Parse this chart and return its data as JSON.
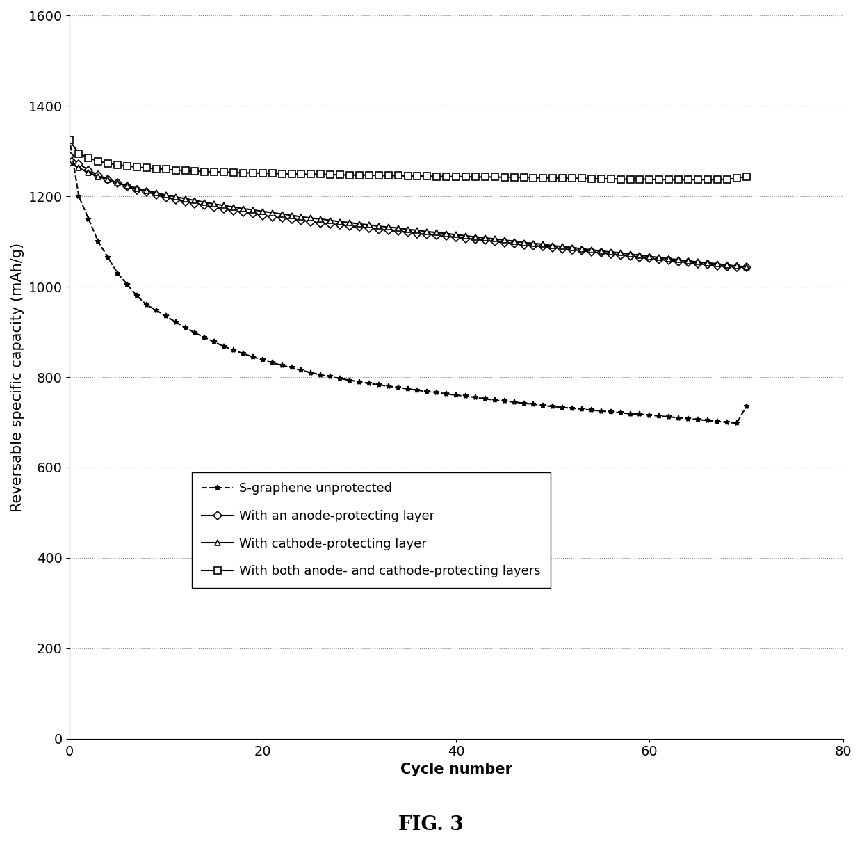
{
  "title": "FIG. 3",
  "xlabel": "Cycle number",
  "ylabel": "Reversable specific capacity (mAh/g)",
  "xlim": [
    0,
    80
  ],
  "ylim": [
    0,
    1600
  ],
  "xticks": [
    0,
    20,
    40,
    60,
    80
  ],
  "yticks": [
    0,
    200,
    400,
    600,
    800,
    1000,
    1200,
    1400,
    1600
  ],
  "background_color": "#ffffff",
  "grid_color": "#888888",
  "title_fontsize": 20,
  "axis_label_fontsize": 15,
  "tick_fontsize": 14,
  "legend_fontsize": 13,
  "series": [
    {
      "label": "S-graphene unprotected",
      "x": [
        0,
        1,
        2,
        3,
        4,
        5,
        6,
        7,
        8,
        9,
        10,
        11,
        12,
        13,
        14,
        15,
        16,
        17,
        18,
        19,
        20,
        21,
        22,
        23,
        24,
        25,
        26,
        27,
        28,
        29,
        30,
        31,
        32,
        33,
        34,
        35,
        36,
        37,
        38,
        39,
        40,
        41,
        42,
        43,
        44,
        45,
        46,
        47,
        48,
        49,
        50,
        51,
        52,
        53,
        54,
        55,
        56,
        57,
        58,
        59,
        60,
        61,
        62,
        63,
        64,
        65,
        66,
        67,
        68,
        69,
        70
      ],
      "y": [
        1330,
        1200,
        1150,
        1100,
        1065,
        1030,
        1005,
        980,
        960,
        948,
        935,
        922,
        910,
        898,
        888,
        878,
        868,
        860,
        852,
        845,
        838,
        832,
        826,
        821,
        815,
        810,
        805,
        801,
        797,
        793,
        790,
        786,
        783,
        780,
        777,
        774,
        771,
        768,
        766,
        763,
        760,
        758,
        755,
        752,
        749,
        747,
        745,
        742,
        740,
        737,
        735,
        733,
        731,
        729,
        727,
        725,
        723,
        721,
        719,
        718,
        716,
        714,
        712,
        710,
        708,
        706,
        704,
        702,
        700,
        698,
        735
      ],
      "color": "#000000",
      "linestyle": "--",
      "marker": "*",
      "markersize": 6,
      "linewidth": 1.5,
      "markerfacecolor": "#000000",
      "markeredgecolor": "#000000"
    },
    {
      "label": "With an anode-protecting layer",
      "x": [
        0,
        1,
        2,
        3,
        4,
        5,
        6,
        7,
        8,
        9,
        10,
        11,
        12,
        13,
        14,
        15,
        16,
        17,
        18,
        19,
        20,
        21,
        22,
        23,
        24,
        25,
        26,
        27,
        28,
        29,
        30,
        31,
        32,
        33,
        34,
        35,
        36,
        37,
        38,
        39,
        40,
        41,
        42,
        43,
        44,
        45,
        46,
        47,
        48,
        49,
        50,
        51,
        52,
        53,
        54,
        55,
        56,
        57,
        58,
        59,
        60,
        61,
        62,
        63,
        64,
        65,
        66,
        67,
        68,
        69,
        70
      ],
      "y": [
        1290,
        1272,
        1258,
        1247,
        1238,
        1230,
        1222,
        1215,
        1210,
        1204,
        1198,
        1193,
        1188,
        1184,
        1180,
        1176,
        1172,
        1168,
        1165,
        1162,
        1158,
        1155,
        1152,
        1149,
        1147,
        1144,
        1141,
        1139,
        1137,
        1134,
        1132,
        1130,
        1127,
        1125,
        1123,
        1121,
        1118,
        1116,
        1114,
        1112,
        1109,
        1107,
        1105,
        1103,
        1100,
        1098,
        1096,
        1093,
        1091,
        1089,
        1087,
        1084,
        1082,
        1080,
        1077,
        1075,
        1073,
        1070,
        1068,
        1065,
        1063,
        1061,
        1058,
        1056,
        1054,
        1051,
        1049,
        1047,
        1045,
        1044,
        1043
      ],
      "color": "#000000",
      "linestyle": "-",
      "marker": "D",
      "markersize": 6,
      "linewidth": 1.5,
      "markerfacecolor": "#ffffff",
      "markeredgecolor": "#000000"
    },
    {
      "label": "With cathode-protecting layer",
      "x": [
        0,
        1,
        2,
        3,
        4,
        5,
        6,
        7,
        8,
        9,
        10,
        11,
        12,
        13,
        14,
        15,
        16,
        17,
        18,
        19,
        20,
        21,
        22,
        23,
        24,
        25,
        26,
        27,
        28,
        29,
        30,
        31,
        32,
        33,
        34,
        35,
        36,
        37,
        38,
        39,
        40,
        41,
        42,
        43,
        44,
        45,
        46,
        47,
        48,
        49,
        50,
        51,
        52,
        53,
        54,
        55,
        56,
        57,
        58,
        59,
        60,
        61,
        62,
        63,
        64,
        65,
        66,
        67,
        68,
        69,
        70
      ],
      "y": [
        1275,
        1263,
        1253,
        1244,
        1237,
        1230,
        1224,
        1218,
        1213,
        1208,
        1203,
        1199,
        1195,
        1191,
        1187,
        1183,
        1180,
        1176,
        1173,
        1170,
        1167,
        1164,
        1161,
        1158,
        1155,
        1152,
        1150,
        1147,
        1144,
        1142,
        1139,
        1137,
        1134,
        1132,
        1130,
        1127,
        1125,
        1122,
        1120,
        1118,
        1115,
        1113,
        1110,
        1108,
        1106,
        1103,
        1101,
        1098,
        1096,
        1094,
        1091,
        1089,
        1087,
        1084,
        1082,
        1079,
        1077,
        1075,
        1072,
        1070,
        1067,
        1065,
        1062,
        1060,
        1057,
        1055,
        1053,
        1051,
        1048,
        1046,
        1044
      ],
      "color": "#000000",
      "linestyle": "-",
      "marker": "^",
      "markersize": 6,
      "linewidth": 1.5,
      "markerfacecolor": "#ffffff",
      "markeredgecolor": "#000000"
    },
    {
      "label": "With both anode- and cathode-protecting layers",
      "x": [
        0,
        1,
        2,
        3,
        4,
        5,
        6,
        7,
        8,
        9,
        10,
        11,
        12,
        13,
        14,
        15,
        16,
        17,
        18,
        19,
        20,
        21,
        22,
        23,
        24,
        25,
        26,
        27,
        28,
        29,
        30,
        31,
        32,
        33,
        34,
        35,
        36,
        37,
        38,
        39,
        40,
        41,
        42,
        43,
        44,
        45,
        46,
        47,
        48,
        49,
        50,
        51,
        52,
        53,
        54,
        55,
        56,
        57,
        58,
        59,
        60,
        61,
        62,
        63,
        64,
        65,
        66,
        67,
        68,
        69,
        70
      ],
      "y": [
        1325,
        1295,
        1285,
        1278,
        1273,
        1270,
        1267,
        1265,
        1263,
        1261,
        1260,
        1258,
        1257,
        1256,
        1255,
        1254,
        1254,
        1253,
        1252,
        1252,
        1251,
        1251,
        1250,
        1250,
        1249,
        1249,
        1249,
        1248,
        1248,
        1247,
        1247,
        1247,
        1246,
        1246,
        1246,
        1245,
        1245,
        1245,
        1244,
        1244,
        1244,
        1244,
        1243,
        1243,
        1243,
        1242,
        1242,
        1242,
        1241,
        1241,
        1241,
        1240,
        1240,
        1240,
        1239,
        1239,
        1239,
        1238,
        1238,
        1238,
        1238,
        1237,
        1237,
        1237,
        1237,
        1237,
        1237,
        1237,
        1238,
        1240,
        1244
      ],
      "color": "#000000",
      "linestyle": "-",
      "marker": "s",
      "markersize": 7,
      "linewidth": 1.5,
      "markerfacecolor": "#ffffff",
      "markeredgecolor": "#000000"
    }
  ]
}
